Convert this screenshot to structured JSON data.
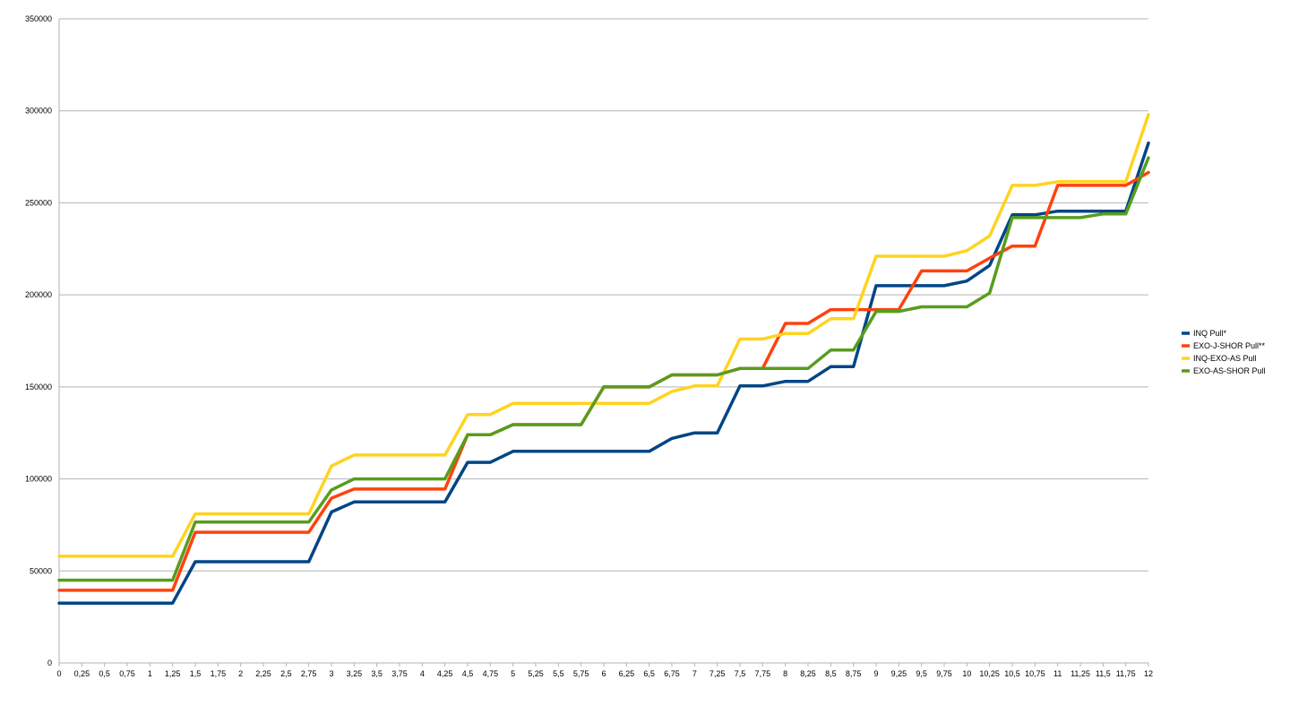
{
  "chart_data": {
    "type": "line",
    "title": "",
    "xlabel": "",
    "ylabel": "",
    "ylim": [
      0,
      350000
    ],
    "y_ticks": [
      "0",
      "50000",
      "100000",
      "150000",
      "200000",
      "250000",
      "300000",
      "350000"
    ],
    "grid": "horizontal",
    "legend_position": "right",
    "categories": [
      "0",
      "0,25",
      "0,5",
      "0,75",
      "1",
      "1,25",
      "1,5",
      "1,75",
      "2",
      "2,25",
      "2,5",
      "2,75",
      "3",
      "3,25",
      "3,5",
      "3,75",
      "4",
      "4,25",
      "4,5",
      "4,75",
      "5",
      "5,25",
      "5,5",
      "5,75",
      "6",
      "6,25",
      "6,5",
      "6,75",
      "7",
      "7,25",
      "7,5",
      "7,75",
      "8",
      "8,25",
      "8,5",
      "8,75",
      "9",
      "9,25",
      "9,5",
      "9,75",
      "10",
      "10,25",
      "10,5",
      "10,75",
      "11",
      "11,25",
      "11,5",
      "11,75",
      "12"
    ],
    "series": [
      {
        "name": "INQ Pull*",
        "color": "#004586",
        "values": [
          32500,
          32500,
          32500,
          32500,
          32500,
          32500,
          55000,
          55000,
          55000,
          55000,
          55000,
          55000,
          82000,
          87500,
          87500,
          87500,
          87500,
          87500,
          109000,
          109000,
          115000,
          115000,
          115000,
          115000,
          115000,
          115000,
          115000,
          122000,
          125000,
          125000,
          150500,
          150500,
          153000,
          153000,
          161000,
          161000,
          205000,
          205000,
          205000,
          205000,
          207500,
          216000,
          243500,
          243500,
          245500,
          245500,
          245500,
          245500,
          282500
        ]
      },
      {
        "name": "EXO-J-SHOR Pull**",
        "color": "#ff420e",
        "values": [
          39500,
          39500,
          39500,
          39500,
          39500,
          39500,
          71000,
          71000,
          71000,
          71000,
          71000,
          71000,
          89500,
          94500,
          94500,
          94500,
          94500,
          94500,
          124000,
          124000,
          129500,
          129500,
          129500,
          129500,
          150000,
          150000,
          150000,
          156500,
          156500,
          156500,
          160000,
          160000,
          184500,
          184500,
          192000,
          192000,
          192000,
          192000,
          213000,
          213000,
          213000,
          220000,
          226500,
          226500,
          259500,
          259500,
          259500,
          259500,
          266500
        ]
      },
      {
        "name": "INQ-EXO-AS Pull",
        "color": "#ffd320",
        "values": [
          58000,
          58000,
          58000,
          58000,
          58000,
          58000,
          81000,
          81000,
          81000,
          81000,
          81000,
          81000,
          107000,
          113000,
          113000,
          113000,
          113000,
          113000,
          135000,
          135000,
          141000,
          141000,
          141000,
          141000,
          141000,
          141000,
          141000,
          147500,
          150500,
          150500,
          176000,
          176000,
          179000,
          179000,
          187000,
          187000,
          221000,
          221000,
          221000,
          221000,
          224000,
          232000,
          259500,
          259500,
          261500,
          261500,
          261500,
          261500,
          298000
        ]
      },
      {
        "name": "EXO-AS-SHOR Pull",
        "color": "#579d1c",
        "values": [
          45000,
          45000,
          45000,
          45000,
          45000,
          45000,
          76500,
          76500,
          76500,
          76500,
          76500,
          76500,
          94000,
          100000,
          100000,
          100000,
          100000,
          100000,
          124000,
          124000,
          129500,
          129500,
          129500,
          129500,
          150000,
          150000,
          150000,
          156500,
          156500,
          156500,
          160000,
          160000,
          160000,
          160000,
          170000,
          170000,
          191000,
          191000,
          193500,
          193500,
          193500,
          201000,
          242000,
          242000,
          242000,
          242000,
          244000,
          244000,
          274500
        ]
      }
    ]
  }
}
